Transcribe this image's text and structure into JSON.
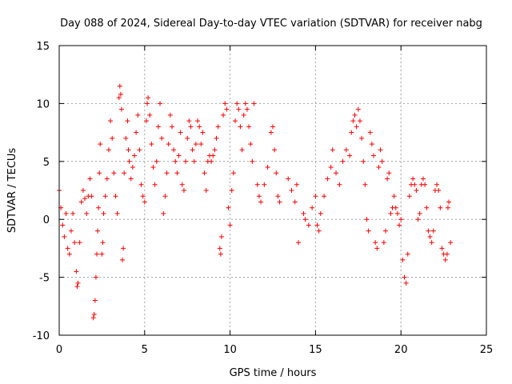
{
  "chart_data": {
    "type": "scatter",
    "title": "Day 088 of 2024, Sidereal Day-to-day VTEC variation (SDTVAR) for receiver nabg",
    "xlabel": "GPS time / hours",
    "ylabel": "SDTVAR / TECUs",
    "xlim": [
      0,
      25
    ],
    "ylim": [
      -10,
      15
    ],
    "xticks": [
      0,
      5,
      10,
      15,
      20,
      25
    ],
    "yticks": [
      -10,
      -5,
      0,
      5,
      10,
      15
    ],
    "grid": true,
    "marker": "+",
    "color": "#ff0000",
    "series": [
      {
        "name": "SDTVAR",
        "points": [
          [
            0.0,
            2.5
          ],
          [
            0.1,
            1.0
          ],
          [
            0.2,
            -0.5
          ],
          [
            0.3,
            -1.5
          ],
          [
            0.4,
            0.5
          ],
          [
            0.5,
            -2.5
          ],
          [
            0.6,
            -3.0
          ],
          [
            0.7,
            -1.0
          ],
          [
            0.8,
            0.5
          ],
          [
            0.9,
            -2.0
          ],
          [
            1.0,
            -4.5
          ],
          [
            1.05,
            -5.8
          ],
          [
            1.1,
            -5.5
          ],
          [
            1.2,
            -2.0
          ],
          [
            1.3,
            1.5
          ],
          [
            1.4,
            2.5
          ],
          [
            1.5,
            1.8
          ],
          [
            1.6,
            0.5
          ],
          [
            1.7,
            2.0
          ],
          [
            1.8,
            3.5
          ],
          [
            1.9,
            2.0
          ],
          [
            2.0,
            -8.5
          ],
          [
            2.05,
            -8.2
          ],
          [
            2.1,
            -7.0
          ],
          [
            2.15,
            -5.0
          ],
          [
            2.2,
            -3.0
          ],
          [
            2.25,
            -1.0
          ],
          [
            2.3,
            1.0
          ],
          [
            2.35,
            4.0
          ],
          [
            2.4,
            6.5
          ],
          [
            2.5,
            -3.0
          ],
          [
            2.55,
            -2.0
          ],
          [
            2.6,
            0.5
          ],
          [
            2.7,
            2.0
          ],
          [
            2.8,
            3.5
          ],
          [
            2.9,
            6.0
          ],
          [
            3.0,
            8.5
          ],
          [
            3.1,
            7.0
          ],
          [
            3.2,
            4.0
          ],
          [
            3.3,
            2.0
          ],
          [
            3.4,
            0.5
          ],
          [
            3.5,
            10.5
          ],
          [
            3.55,
            11.5
          ],
          [
            3.6,
            10.8
          ],
          [
            3.65,
            9.5
          ],
          [
            3.7,
            -3.5
          ],
          [
            3.75,
            -2.5
          ],
          [
            3.8,
            4.0
          ],
          [
            3.9,
            7.0
          ],
          [
            4.0,
            8.5
          ],
          [
            4.05,
            6.0
          ],
          [
            4.1,
            5.0
          ],
          [
            4.2,
            3.5
          ],
          [
            4.3,
            4.5
          ],
          [
            4.4,
            5.5
          ],
          [
            4.5,
            7.5
          ],
          [
            4.6,
            9.0
          ],
          [
            4.7,
            6.0
          ],
          [
            4.8,
            3.0
          ],
          [
            4.9,
            2.0
          ],
          [
            5.0,
            1.5
          ],
          [
            5.1,
            8.5
          ],
          [
            5.15,
            10.0
          ],
          [
            5.2,
            10.5
          ],
          [
            5.3,
            9.0
          ],
          [
            5.4,
            6.5
          ],
          [
            5.5,
            4.5
          ],
          [
            5.6,
            3.0
          ],
          [
            5.7,
            5.0
          ],
          [
            5.8,
            8.0
          ],
          [
            5.9,
            10.0
          ],
          [
            6.0,
            7.0
          ],
          [
            6.1,
            0.5
          ],
          [
            6.2,
            2.0
          ],
          [
            6.3,
            4.0
          ],
          [
            6.4,
            6.5
          ],
          [
            6.5,
            9.0
          ],
          [
            6.6,
            8.0
          ],
          [
            6.7,
            6.0
          ],
          [
            6.8,
            5.0
          ],
          [
            6.9,
            4.0
          ],
          [
            7.0,
            5.5
          ],
          [
            7.1,
            7.5
          ],
          [
            7.2,
            3.0
          ],
          [
            7.3,
            2.5
          ],
          [
            7.4,
            5.0
          ],
          [
            7.5,
            7.0
          ],
          [
            7.6,
            8.5
          ],
          [
            7.7,
            8.0
          ],
          [
            7.8,
            6.0
          ],
          [
            7.9,
            5.0
          ],
          [
            8.0,
            6.5
          ],
          [
            8.1,
            8.5
          ],
          [
            8.2,
            8.0
          ],
          [
            8.3,
            6.5
          ],
          [
            8.4,
            7.5
          ],
          [
            8.5,
            4.0
          ],
          [
            8.6,
            2.5
          ],
          [
            8.7,
            5.0
          ],
          [
            8.8,
            5.5
          ],
          [
            8.9,
            5.0
          ],
          [
            9.0,
            5.5
          ],
          [
            9.1,
            6.0
          ],
          [
            9.2,
            7.0
          ],
          [
            9.3,
            8.0
          ],
          [
            9.4,
            -2.5
          ],
          [
            9.45,
            -3.0
          ],
          [
            9.5,
            -1.5
          ],
          [
            9.6,
            9.0
          ],
          [
            9.7,
            10.0
          ],
          [
            9.8,
            9.5
          ],
          [
            9.9,
            1.0
          ],
          [
            10.0,
            -0.5
          ],
          [
            10.1,
            2.5
          ],
          [
            10.2,
            4.0
          ],
          [
            10.3,
            8.5
          ],
          [
            10.4,
            10.0
          ],
          [
            10.5,
            9.5
          ],
          [
            10.6,
            8.0
          ],
          [
            10.7,
            6.0
          ],
          [
            10.8,
            9.0
          ],
          [
            10.9,
            10.0
          ],
          [
            11.0,
            9.5
          ],
          [
            11.1,
            8.0
          ],
          [
            11.2,
            6.5
          ],
          [
            11.3,
            5.0
          ],
          [
            11.4,
            10.0
          ],
          [
            11.6,
            3.0
          ],
          [
            11.7,
            2.0
          ],
          [
            11.8,
            1.5
          ],
          [
            12.0,
            3.0
          ],
          [
            12.2,
            4.5
          ],
          [
            12.4,
            7.5
          ],
          [
            12.5,
            8.0
          ],
          [
            12.6,
            6.0
          ],
          [
            12.7,
            4.0
          ],
          [
            12.8,
            2.0
          ],
          [
            12.9,
            1.5
          ],
          [
            13.4,
            3.5
          ],
          [
            13.6,
            2.5
          ],
          [
            13.8,
            1.5
          ],
          [
            13.9,
            3.0
          ],
          [
            14.0,
            -2.0
          ],
          [
            14.3,
            0.5
          ],
          [
            14.4,
            0.0
          ],
          [
            14.6,
            -0.5
          ],
          [
            14.8,
            1.0
          ],
          [
            15.0,
            2.0
          ],
          [
            15.1,
            -0.5
          ],
          [
            15.2,
            -1.0
          ],
          [
            15.3,
            0.5
          ],
          [
            15.5,
            2.0
          ],
          [
            15.7,
            3.5
          ],
          [
            15.9,
            4.5
          ],
          [
            16.0,
            6.0
          ],
          [
            16.2,
            4.0
          ],
          [
            16.4,
            3.0
          ],
          [
            16.6,
            5.0
          ],
          [
            16.8,
            6.0
          ],
          [
            17.0,
            5.5
          ],
          [
            17.1,
            7.5
          ],
          [
            17.2,
            8.5
          ],
          [
            17.3,
            9.0
          ],
          [
            17.4,
            8.0
          ],
          [
            17.5,
            9.5
          ],
          [
            17.6,
            8.5
          ],
          [
            17.7,
            7.0
          ],
          [
            17.8,
            5.0
          ],
          [
            17.9,
            3.0
          ],
          [
            18.0,
            0.0
          ],
          [
            18.1,
            -1.0
          ],
          [
            18.2,
            7.5
          ],
          [
            18.3,
            6.5
          ],
          [
            18.4,
            5.5
          ],
          [
            18.5,
            -2.0
          ],
          [
            18.6,
            -2.5
          ],
          [
            18.7,
            4.5
          ],
          [
            18.8,
            6.0
          ],
          [
            18.9,
            5.0
          ],
          [
            19.0,
            -2.0
          ],
          [
            19.1,
            -1.0
          ],
          [
            19.2,
            3.5
          ],
          [
            19.3,
            4.0
          ],
          [
            19.4,
            0.5
          ],
          [
            19.5,
            1.0
          ],
          [
            19.6,
            2.0
          ],
          [
            19.7,
            1.0
          ],
          [
            19.8,
            0.5
          ],
          [
            19.9,
            -0.5
          ],
          [
            20.0,
            0.0
          ],
          [
            20.1,
            -3.5
          ],
          [
            20.2,
            -5.0
          ],
          [
            20.3,
            -5.5
          ],
          [
            20.4,
            -3.0
          ],
          [
            20.5,
            2.0
          ],
          [
            20.6,
            3.0
          ],
          [
            20.7,
            3.5
          ],
          [
            20.8,
            3.0
          ],
          [
            20.9,
            2.5
          ],
          [
            21.0,
            0.0
          ],
          [
            21.1,
            0.5
          ],
          [
            21.2,
            3.0
          ],
          [
            21.3,
            3.5
          ],
          [
            21.4,
            3.0
          ],
          [
            21.5,
            1.0
          ],
          [
            21.6,
            -1.0
          ],
          [
            21.7,
            -1.5
          ],
          [
            21.8,
            -2.0
          ],
          [
            21.9,
            -1.0
          ],
          [
            22.0,
            2.5
          ],
          [
            22.1,
            3.0
          ],
          [
            22.2,
            2.5
          ],
          [
            22.3,
            1.0
          ],
          [
            22.4,
            -2.5
          ],
          [
            22.5,
            -3.0
          ],
          [
            22.6,
            -3.5
          ],
          [
            22.7,
            -3.0
          ],
          [
            22.75,
            1.0
          ],
          [
            22.8,
            1.5
          ],
          [
            22.9,
            -2.0
          ]
        ]
      }
    ]
  }
}
